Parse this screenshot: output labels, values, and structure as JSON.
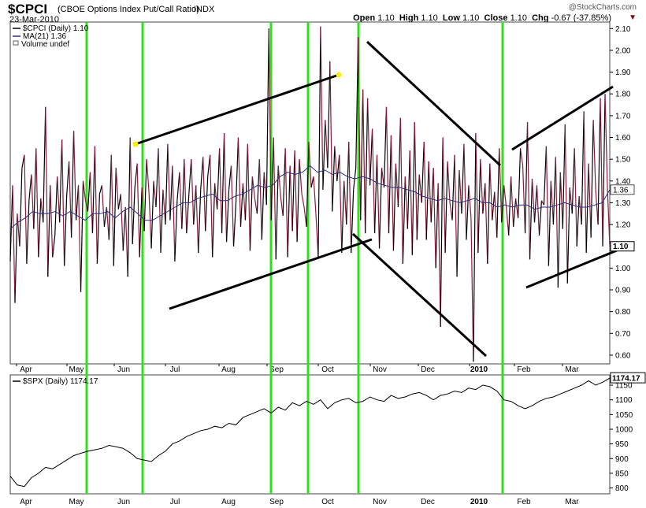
{
  "header": {
    "symbol": "$CPCI",
    "description": "(CBOE Options Index Put/Call Ratio)",
    "exchange": "INDX",
    "date": "23-Mar-2010",
    "brand": "@StockCharts.com",
    "open_label": "Open",
    "open": "1.10",
    "high_label": "High",
    "high": "1.10",
    "low_label": "Low",
    "low": "1.10",
    "close_label": "Close",
    "close": "1.10",
    "chg_label": "Chg",
    "chg": "-0.67 (-37.85%)"
  },
  "colors": {
    "cpci_up": "#000000",
    "cpci_down": "#8b1a3a",
    "ma": "#2b2b8c",
    "spx": "#000000",
    "vertical_markers": "#33dd22",
    "trendlines": "#000000",
    "endpoint_marker": "#ffee00"
  },
  "chart_data": [
    {
      "type": "line",
      "name": "cpci-panel",
      "legend": [
        "$CPCI (Daily) 1.10",
        "MA(21) 1.36",
        "Volume undef"
      ],
      "x_tick_labels": [
        "Apr",
        "May",
        "Jun",
        "Jul",
        "Aug",
        "Sep",
        "Oct",
        "Nov",
        "Dec",
        "2010",
        "Feb",
        "Mar"
      ],
      "y_ticks": [
        0.6,
        0.7,
        0.8,
        0.9,
        1.0,
        1.1,
        1.2,
        1.3,
        1.4,
        1.5,
        1.6,
        1.7,
        1.8,
        1.9,
        2.0,
        2.1
      ],
      "ylim": [
        0.56,
        2.13
      ],
      "last_value_labels": [
        "1.36",
        "1.10"
      ],
      "series": [
        {
          "name": "$CPCI (Daily)",
          "values": [
            1.03,
            1.38,
            0.84,
            1.25,
            1.1,
            1.46,
            1.52,
            1.02,
            1.31,
            1.43,
            1.18,
            1.55,
            1.05,
            1.32,
            1.21,
            1.74,
            0.96,
            1.38,
            1.05,
            1.15,
            1.42,
            1.21,
            1.59,
            1.01,
            1.33,
            1.49,
            1.14,
            1.63,
            1.22,
            1.38,
            0.89,
            1.4,
            1.31,
            1.26,
            1.44,
            1.16,
            1.56,
            1.02,
            1.34,
            1.38,
            1.19,
            1.28,
            1.13,
            1.52,
            1.01,
            1.46,
            1.27,
            1.34,
            1.08,
            1.28,
            0.96,
            1.6,
            1.11,
            1.37,
            1.48,
            1.05,
            1.37,
            1.17,
            1.5,
            1.35,
            1.09,
            1.4,
            1.28,
            1.55,
            1.07,
            1.36,
            1.2,
            1.57,
            1.22,
            1.47,
            1.03,
            1.31,
            1.44,
            1.18,
            1.5,
            1.16,
            1.34,
            1.5,
            1.2,
            1.38,
            1.07,
            1.36,
            1.51,
            1.17,
            1.42,
            1.52,
            1.05,
            1.39,
            1.27,
            1.55,
            1.16,
            1.62,
            1.12,
            1.36,
            1.47,
            1.1,
            1.3,
            1.6,
            1.19,
            1.39,
            1.22,
            1.57,
            1.08,
            1.42,
            1.32,
            1.25,
            1.5,
            1.13,
            1.44,
            1.29,
            2.1,
            1.22,
            1.6,
            1.04,
            1.47,
            1.33,
            1.24,
            1.55,
            1.05,
            1.47,
            1.17,
            1.54,
            1.12,
            1.5,
            1.34,
            1.28,
            1.19,
            1.58,
            1.37,
            1.42,
            1.25,
            1.05,
            2.11,
            1.36,
            1.68,
            1.46,
            1.95,
            1.26,
            1.56,
            1.4,
            1.52,
            1.07,
            1.4,
            1.2,
            1.58,
            1.07,
            1.36,
            1.46,
            2.06,
            1.22,
            1.82,
            1.16,
            1.78,
            1.38,
            1.64,
            1.16,
            1.52,
            1.09,
            1.46,
            1.37,
            1.74,
            1.16,
            1.61,
            1.08,
            1.48,
            1.28,
            1.69,
            1.02,
            1.42,
            1.18,
            1.54,
            1.06,
            1.67,
            1.13,
            1.43,
            1.3,
            1.58,
            1.13,
            1.49,
            1.21,
            1.46,
            1.0,
            1.39,
            0.73,
            1.6,
            1.07,
            1.49,
            1.3,
            1.22,
            1.52,
            0.96,
            1.45,
            1.25,
            1.57,
            1.13,
            1.38,
            1.23,
            0.57,
            1.62,
            1.07,
            1.5,
            1.25,
            1.39,
            1.02,
            1.48,
            1.22,
            1.35,
            1.14,
            1.55,
            1.21,
            1.38,
            1.28,
            1.15,
            1.42,
            1.19,
            1.32,
            1.23,
            1.55,
            1.47,
            1.16,
            1.67,
            1.04,
            1.41,
            1.21,
            1.38,
            1.15,
            1.31,
            1.29,
            1.56,
            1.01,
            1.4,
            1.2,
            1.51,
            0.91,
            1.44,
            1.18,
            1.66,
            0.93,
            1.37,
            1.25,
            1.55,
            1.1,
            1.33,
            1.2,
            1.72,
            1.07,
            1.48,
            1.14,
            1.68,
            1.36,
            1.2,
            1.78,
            1.1,
            1.8,
            1.37,
            1.1
          ]
        },
        {
          "name": "MA(21)",
          "values": [
            1.18,
            1.21,
            1.23,
            1.26,
            1.25,
            1.25,
            1.26,
            1.24,
            1.26,
            1.24,
            1.22,
            1.25,
            1.25,
            1.26,
            1.23,
            1.26,
            1.28,
            1.25,
            1.22,
            1.22,
            1.24,
            1.26,
            1.28,
            1.3,
            1.3,
            1.32,
            1.33,
            1.34,
            1.31,
            1.31,
            1.33,
            1.34,
            1.36,
            1.38,
            1.37,
            1.38,
            1.42,
            1.44,
            1.43,
            1.44,
            1.47,
            1.44,
            1.45,
            1.43,
            1.44,
            1.42,
            1.41,
            1.42,
            1.41,
            1.39,
            1.38,
            1.37,
            1.37,
            1.36,
            1.35,
            1.33,
            1.32,
            1.31,
            1.32,
            1.31,
            1.3,
            1.31,
            1.32,
            1.3,
            1.3,
            1.28,
            1.29,
            1.28,
            1.29,
            1.29,
            1.27,
            1.28,
            1.28,
            1.29,
            1.3,
            1.29,
            1.28,
            1.28,
            1.29,
            1.3,
            1.36
          ]
        },
        {
          "name": "$SPX (Daily)",
          "values": [
            840,
            810,
            805,
            835,
            850,
            870,
            865,
            880,
            895,
            910,
            918,
            925,
            930,
            935,
            945,
            940,
            935,
            920,
            900,
            895,
            890,
            910,
            925,
            950,
            960,
            975,
            985,
            995,
            1000,
            1010,
            1005,
            1020,
            1015,
            1040,
            1050,
            1060,
            1070,
            1055,
            1075,
            1065,
            1090,
            1080,
            1095,
            1085,
            1100,
            1070,
            1090,
            1100,
            1105,
            1090,
            1095,
            1110,
            1100,
            1095,
            1115,
            1105,
            1110,
            1120,
            1125,
            1115,
            1100,
            1115,
            1120,
            1130,
            1125,
            1140,
            1135,
            1150,
            1145,
            1130,
            1100,
            1095,
            1080,
            1070,
            1080,
            1095,
            1105,
            1110,
            1120,
            1130,
            1140,
            1150,
            1165,
            1150,
            1160,
            1174
          ]
        }
      ]
    },
    {
      "type": "line",
      "name": "spx-panel",
      "legend": [
        "$SPX (Daily) 1174.17"
      ],
      "x_tick_labels": [
        "Apr",
        "May",
        "Jun",
        "Jul",
        "Aug",
        "Sep",
        "Oct",
        "Nov",
        "Dec",
        "2010",
        "Feb",
        "Mar"
      ],
      "y_ticks": [
        800,
        850,
        900,
        950,
        1000,
        1050,
        1100,
        1150
      ],
      "ylim": [
        780,
        1185
      ],
      "last_value_labels": [
        "1174.17"
      ]
    }
  ]
}
